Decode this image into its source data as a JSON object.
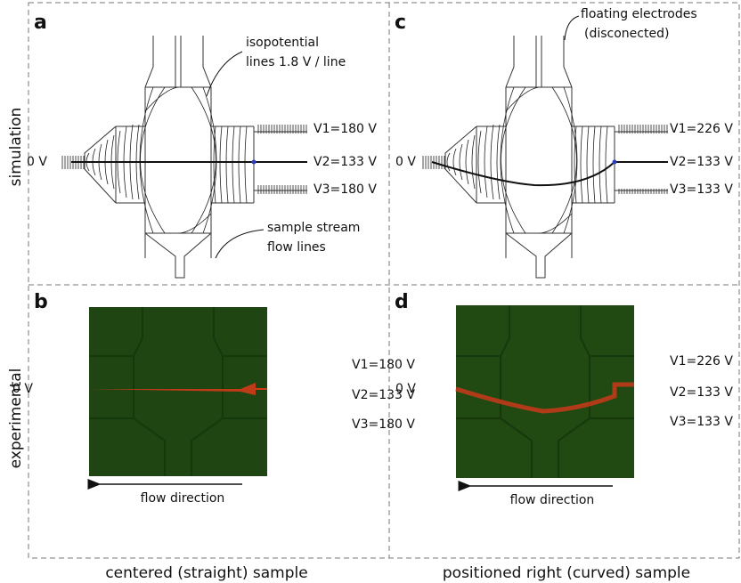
{
  "rows": [
    "simulation",
    "experimental"
  ],
  "captions": [
    "centered (straight) sample",
    "positioned right (curved) sample"
  ],
  "panels": {
    "a": {
      "label": "a",
      "ground": "0 V",
      "voltages": [
        "V1=180 V",
        "V2=133 V",
        "V3=180 V"
      ],
      "annotations": [
        [
          "isopotential",
          "lines  1.8 V / line"
        ],
        [
          "sample stream",
          "flow lines"
        ]
      ]
    },
    "b": {
      "label": "b",
      "ground": "0 V",
      "voltages": [
        "V1=180 V",
        "V2=133 V",
        "V3=180 V"
      ],
      "arrow": "flow direction"
    },
    "c": {
      "label": "c",
      "ground": "0 V",
      "voltages": [
        "V1=226 V",
        "V2=133 V",
        "V3=133 V"
      ],
      "annotations": [
        [
          "floating electrodes",
          "(disconected)"
        ]
      ]
    },
    "d": {
      "label": "d",
      "ground": "0 V",
      "voltages": [
        "V1=226 V",
        "V2=133 V",
        "V3=133 V"
      ],
      "arrow": "flow direction"
    }
  }
}
